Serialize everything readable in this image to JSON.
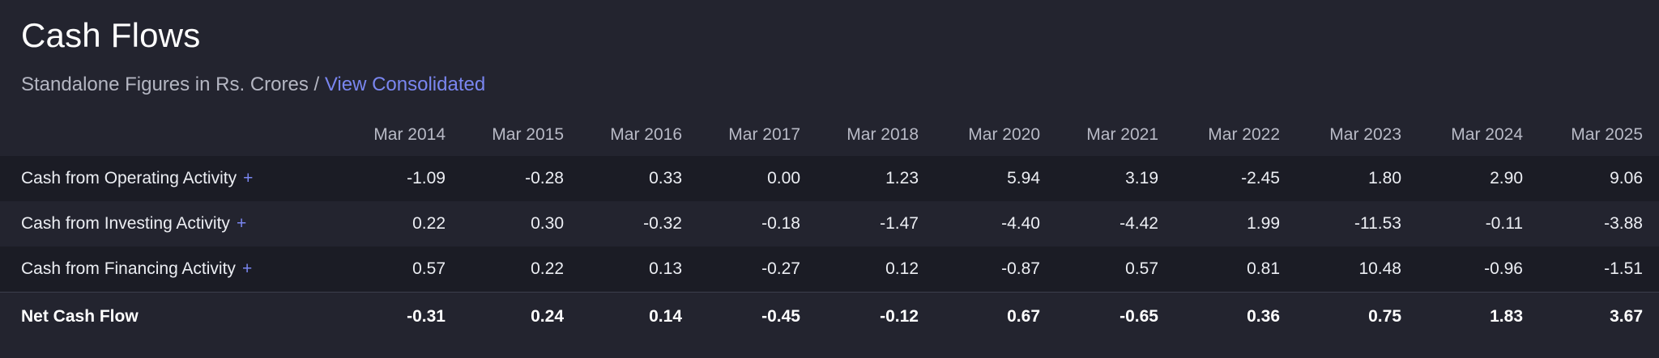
{
  "header": {
    "title": "Cash Flows",
    "subtitle_text": "Standalone Figures in Rs. Crores /",
    "subtitle_link": "View Consolidated"
  },
  "table": {
    "columns": [
      "Mar 2014",
      "Mar 2015",
      "Mar 2016",
      "Mar 2017",
      "Mar 2018",
      "Mar 2020",
      "Mar 2021",
      "Mar 2022",
      "Mar 2023",
      "Mar 2024",
      "Mar 2025"
    ],
    "rows": [
      {
        "label": "Cash from Operating Activity",
        "expand": "+",
        "values": [
          "-1.09",
          "-0.28",
          "0.33",
          "0.00",
          "1.23",
          "5.94",
          "3.19",
          "-2.45",
          "1.80",
          "2.90",
          "9.06"
        ]
      },
      {
        "label": "Cash from Investing Activity",
        "expand": "+",
        "values": [
          "0.22",
          "0.30",
          "-0.32",
          "-0.18",
          "-1.47",
          "-4.40",
          "-4.42",
          "1.99",
          "-11.53",
          "-0.11",
          "-3.88"
        ]
      },
      {
        "label": "Cash from Financing Activity",
        "expand": "+",
        "values": [
          "0.57",
          "0.22",
          "0.13",
          "-0.27",
          "0.12",
          "-0.87",
          "0.57",
          "0.81",
          "10.48",
          "-0.96",
          "-1.51"
        ]
      },
      {
        "label": "Net Cash Flow",
        "expand": "",
        "values": [
          "-0.31",
          "0.24",
          "0.14",
          "-0.45",
          "-0.12",
          "0.67",
          "-0.65",
          "0.36",
          "0.75",
          "1.83",
          "3.67"
        ]
      }
    ]
  },
  "colors": {
    "background": "#23242f",
    "stripe": "#1b1c25",
    "accent": "#7a86f0"
  }
}
